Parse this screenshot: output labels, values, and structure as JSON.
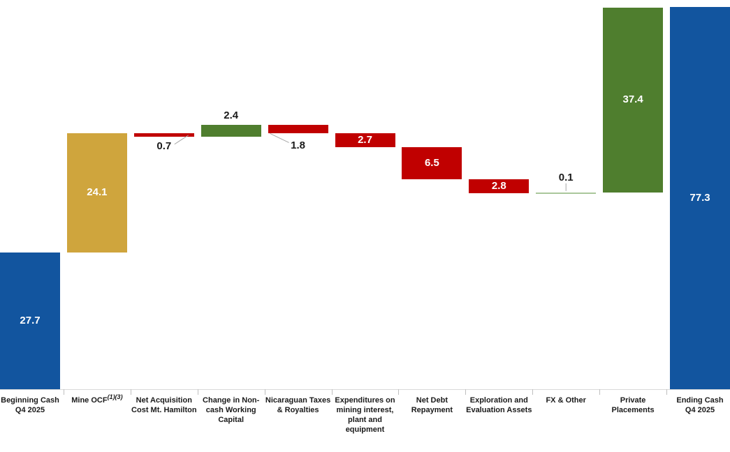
{
  "chart_data": {
    "type": "waterfall",
    "title": "",
    "y_axis": {
      "min": 0,
      "max": 77.3,
      "visible": false,
      "grid": false
    },
    "legend": "none",
    "bars": [
      {
        "category_lines": [
          "Beginning Cash",
          "Q4 2025"
        ],
        "label": "27.7",
        "start": 0,
        "end": 27.7,
        "role": "total",
        "color": "blue",
        "label_placement": "inside"
      },
      {
        "category_lines": [
          "Mine OCF"
        ],
        "category_sup": "(1)(3)",
        "label": "24.1",
        "start": 27.7,
        "end": 51.8,
        "role": "increase",
        "color": "gold",
        "label_placement": "inside"
      },
      {
        "category_lines": [
          "Net Acquisition",
          "Cost Mt. Hamilton"
        ],
        "label": "0.7",
        "start": 51.8,
        "end": 51.1,
        "role": "decrease",
        "color": "red",
        "label_placement": "leader-below-right"
      },
      {
        "category_lines": [
          "Change in Non-",
          "cash Working",
          "Capital"
        ],
        "label": "2.4",
        "start": 51.1,
        "end": 53.5,
        "role": "increase",
        "color": "green",
        "label_placement": "above"
      },
      {
        "category_lines": [
          "Nicaraguan Taxes",
          "& Royalties"
        ],
        "label": "1.8",
        "start": 53.5,
        "end": 51.7,
        "role": "decrease",
        "color": "red",
        "label_placement": "leader-below-left"
      },
      {
        "category_lines": [
          "Expenditures on",
          "mining interest,",
          "plant and",
          "equipment"
        ],
        "label": "2.7",
        "start": 51.7,
        "end": 49.0,
        "role": "decrease",
        "color": "red",
        "label_placement": "inside"
      },
      {
        "category_lines": [
          "Net Debt",
          "Repayment"
        ],
        "label": "6.5",
        "start": 49.0,
        "end": 42.5,
        "role": "decrease",
        "color": "red",
        "label_placement": "inside"
      },
      {
        "category_lines": [
          "Exploration and",
          "Evaluation Assets"
        ],
        "label": "2.8",
        "start": 42.5,
        "end": 39.7,
        "role": "decrease",
        "color": "red",
        "label_placement": "inside"
      },
      {
        "category_lines": [
          "FX & Other"
        ],
        "label": "0.1",
        "start": 39.7,
        "end": 39.8,
        "role": "increase",
        "color": "thin",
        "label_placement": "leader-above"
      },
      {
        "category_lines": [
          "Private Placements"
        ],
        "label": "37.4",
        "start": 39.8,
        "end": 77.2,
        "role": "increase",
        "color": "green",
        "label_placement": "inside"
      },
      {
        "category_lines": [
          "Ending Cash",
          "Q4 2025"
        ],
        "label": "77.3",
        "start": 0,
        "end": 77.3,
        "role": "total",
        "color": "blue",
        "label_placement": "inside"
      }
    ],
    "colors": {
      "blue": "#12559f",
      "gold": "#cfa53d",
      "red": "#c00000",
      "green": "#4f7e2e",
      "thin": "#aac79b",
      "leader_line": "#a6a6a6",
      "axis_line": "#d9d9d9",
      "tick": "#bfbfbf",
      "label_inside": "#ffffff",
      "label_outside": "#1a1a1a"
    }
  }
}
